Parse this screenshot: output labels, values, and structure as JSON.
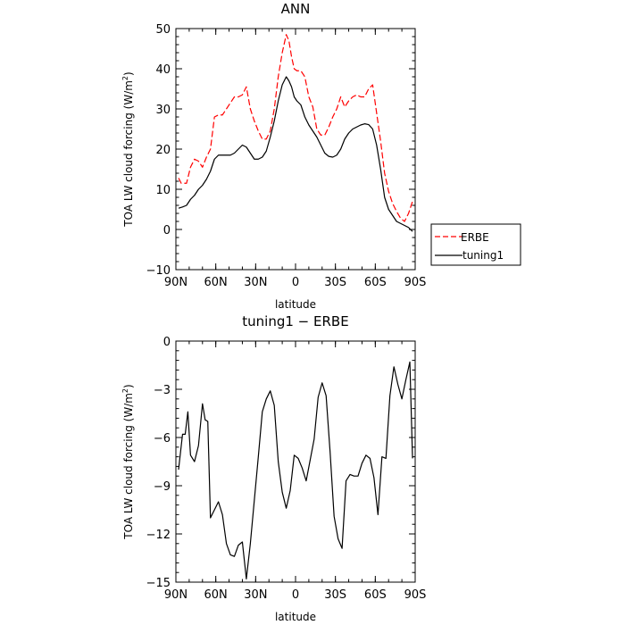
{
  "chart_data": [
    {
      "type": "line",
      "title": "ANN",
      "xlabel": "latitude",
      "ylabel": "TOA LW cloud forcing (W/m²)",
      "ylabel_main": "TOA LW cloud forcing (W/m",
      "ylabel_sup": "2",
      "ylabel_tail": ")",
      "xlim": [
        -90,
        90
      ],
      "ylim": [
        -10,
        50
      ],
      "yticks": [
        -10,
        0,
        10,
        20,
        30,
        40,
        50
      ],
      "ytick_labels": [
        "−10",
        "0",
        "10",
        "20",
        "30",
        "40",
        "50"
      ],
      "xticks": [
        -90,
        -60,
        -30,
        0,
        30,
        60,
        90
      ],
      "xtick_labels": [
        "90N",
        "60N",
        "30N",
        "0",
        "30S",
        "60S",
        "90S"
      ],
      "legend": "outside-right",
      "series": [
        {
          "name": "ERBE",
          "color": "#ff0000",
          "style": "dashed",
          "x": [
            -88,
            -86,
            -82,
            -79,
            -76,
            -73,
            -70,
            -67,
            -64,
            -61,
            -58,
            -55,
            -52,
            -49,
            -46,
            -43,
            -40,
            -37,
            -34,
            -31,
            -28,
            -25,
            -22,
            -19,
            -16,
            -13,
            -10,
            -7,
            -5,
            -3,
            -1,
            1,
            4,
            7,
            10,
            13,
            16,
            19,
            22,
            25,
            28,
            31,
            34,
            37,
            40,
            43,
            46,
            49,
            52,
            55,
            58,
            61,
            64,
            67,
            70,
            73,
            76,
            79,
            82,
            85,
            88
          ],
          "values": [
            12.8,
            11.5,
            11.5,
            15.5,
            17.5,
            17,
            15.5,
            18,
            20,
            28,
            28.5,
            28.5,
            30,
            31.5,
            33,
            33,
            33.5,
            35.5,
            30,
            27,
            24.5,
            22.5,
            22.5,
            24.5,
            30,
            38,
            44,
            48.5,
            47,
            43,
            40,
            39.5,
            39.5,
            38,
            33,
            30.5,
            25,
            23.5,
            23.5,
            25.5,
            28,
            30,
            33,
            30.5,
            32,
            33,
            33.5,
            33,
            33,
            35,
            36,
            29,
            22,
            14,
            9.5,
            6.5,
            4.5,
            2.8,
            2,
            4,
            7
          ]
        },
        {
          "name": "tuning1",
          "color": "#000000",
          "style": "solid",
          "x": [
            -88,
            -85,
            -82,
            -79,
            -76,
            -73,
            -70,
            -67,
            -64,
            -61,
            -58,
            -55,
            -52,
            -49,
            -46,
            -43,
            -40,
            -37,
            -34,
            -31,
            -28,
            -25,
            -22,
            -19,
            -16,
            -13,
            -10,
            -7,
            -5,
            -3,
            -1,
            1,
            4,
            7,
            10,
            13,
            16,
            19,
            22,
            25,
            28,
            31,
            34,
            37,
            40,
            43,
            46,
            49,
            52,
            55,
            58,
            61,
            64,
            67,
            70,
            73,
            76,
            79,
            82,
            85,
            88
          ],
          "values": [
            5.3,
            5.6,
            6,
            7.5,
            8.5,
            10,
            11,
            12.5,
            14.5,
            17.5,
            18.5,
            18.5,
            18.5,
            18.5,
            19,
            20,
            21,
            20.5,
            19,
            17.5,
            17.5,
            18,
            19.5,
            23,
            27,
            32,
            36,
            38,
            37,
            35.5,
            33,
            32,
            31,
            28,
            26,
            24.5,
            23,
            21,
            19,
            18.2,
            18,
            18.5,
            20,
            22.5,
            24,
            25,
            25.5,
            26,
            26.3,
            26.1,
            25,
            21,
            15,
            8,
            5,
            3.5,
            2,
            1.5,
            1,
            0.5,
            -0.5
          ]
        }
      ]
    },
    {
      "type": "line",
      "title": "tuning1 − ERBE",
      "xlabel": "latitude",
      "ylabel": "TOA LW cloud forcing (W/m²)",
      "ylabel_main": "TOA LW cloud forcing (W/m",
      "ylabel_sup": "2",
      "ylabel_tail": ")",
      "xlim": [
        -90,
        90
      ],
      "ylim": [
        -15,
        0
      ],
      "yticks": [
        -15,
        -12,
        -9,
        -6,
        -3,
        0
      ],
      "ytick_labels": [
        "−15",
        "−12",
        "−9",
        "−6",
        "−3",
        "0"
      ],
      "xticks": [
        -90,
        -60,
        -30,
        0,
        30,
        60,
        90
      ],
      "xtick_labels": [
        "90N",
        "60N",
        "30N",
        "0",
        "30S",
        "60S",
        "90S"
      ],
      "series": [
        {
          "color": "#000000",
          "style": "solid",
          "x": [
            -88,
            -85,
            -83,
            -81,
            -79,
            -76,
            -73,
            -70,
            -68,
            -66,
            -64,
            -61,
            -58,
            -55,
            -52,
            -49,
            -46,
            -43,
            -40,
            -37,
            -34,
            -31,
            -28,
            -25,
            -22,
            -19,
            -16,
            -13,
            -10,
            -7,
            -4,
            -1,
            2,
            5,
            8,
            11,
            14,
            17,
            20,
            23,
            26,
            29,
            32,
            35,
            38,
            41,
            44,
            47,
            50,
            53,
            56,
            59,
            62,
            65,
            68,
            71,
            74,
            77,
            80,
            83,
            86,
            88
          ],
          "values": [
            -8,
            -5.8,
            -5.8,
            -4.4,
            -7.1,
            -7.5,
            -6.5,
            -3.9,
            -4.9,
            -5.0,
            -11,
            -10.5,
            -10,
            -10.8,
            -12.6,
            -13.3,
            -13.4,
            -12.7,
            -12.5,
            -14.8,
            -12.6,
            -9.9,
            -7.2,
            -4.4,
            -3.6,
            -3.1,
            -4,
            -7.5,
            -9.4,
            -10.4,
            -9.3,
            -7.1,
            -7.3,
            -7.9,
            -8.7,
            -7.4,
            -6.1,
            -3.5,
            -2.6,
            -3.4,
            -6.9,
            -10.9,
            -12.3,
            -12.9,
            -8.7,
            -8.3,
            -8.4,
            -8.4,
            -7.6,
            -7.1,
            -7.3,
            -8.5,
            -10.8,
            -7.2,
            -7.3,
            -3.4,
            -1.6,
            -2.7,
            -3.6,
            -2.4,
            -1.3,
            -7.3
          ]
        }
      ]
    }
  ]
}
